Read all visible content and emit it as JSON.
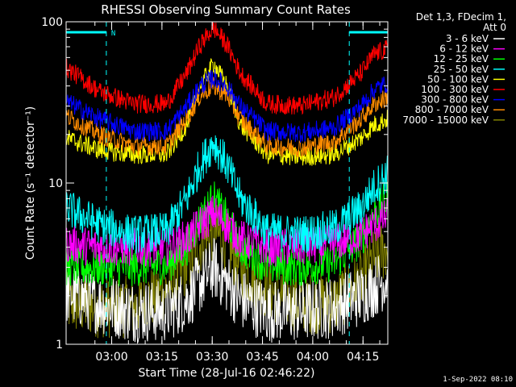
{
  "chart_data": {
    "type": "line",
    "title": "RHESSI Observing Summary Count Rates",
    "xlabel": "Start Time (28-Jul-16 02:46:22)",
    "ylabel": "Count Rate (s⁻¹ detector⁻¹)",
    "x_ticks": [
      "03:00",
      "03:15",
      "03:30",
      "03:45",
      "04:00",
      "04:15"
    ],
    "x_tick_minutes": [
      13.6,
      28.6,
      43.6,
      58.6,
      73.6,
      88.6
    ],
    "xlim_minutes": [
      0,
      96
    ],
    "y_ticks": [
      "1",
      "10",
      "100"
    ],
    "ylim": [
      1,
      100
    ],
    "y_scale": "log",
    "legend_header": [
      "Det 1,3, FDecim 1,",
      "Att 0"
    ],
    "legend_placement": "right",
    "night_marker_label": "N",
    "night_intervals_minutes": [
      [
        0,
        12
      ],
      [
        84.5,
        96
      ]
    ],
    "footer_date": "1-Sep-2022 08:10",
    "series": [
      {
        "name": "3 - 6 keV",
        "color": "#ffffff",
        "x": [
          0,
          10,
          20,
          30,
          36,
          40,
          44,
          48,
          52,
          60,
          70,
          80,
          88,
          92,
          96
        ],
        "y": [
          2.1,
          1.8,
          1.6,
          1.6,
          1.9,
          2.4,
          3.0,
          2.4,
          1.9,
          1.6,
          1.6,
          1.7,
          2.0,
          2.3,
          2.6
        ]
      },
      {
        "name": "6 - 12 keV",
        "color": "#ff00ff",
        "x": [
          0,
          10,
          20,
          30,
          36,
          40,
          44,
          48,
          52,
          60,
          70,
          80,
          88,
          92,
          96
        ],
        "y": [
          4.2,
          4.0,
          4.0,
          4.0,
          4.5,
          5.5,
          6.5,
          5.5,
          4.5,
          4.0,
          4.0,
          4.2,
          4.8,
          5.5,
          6.2
        ]
      },
      {
        "name": "12 - 25 keV",
        "color": "#00ff00",
        "x": [
          0,
          10,
          20,
          30,
          36,
          40,
          44,
          48,
          52,
          60,
          70,
          80,
          88,
          92,
          96
        ],
        "y": [
          3.0,
          3.0,
          3.0,
          3.1,
          4.0,
          6.0,
          8.0,
          6.0,
          4.0,
          3.1,
          3.0,
          3.2,
          4.5,
          6.5,
          8.0
        ]
      },
      {
        "name": "25 - 50 keV",
        "color": "#00ffff",
        "x": [
          0,
          10,
          20,
          30,
          36,
          40,
          44,
          48,
          52,
          60,
          70,
          80,
          88,
          92,
          96
        ],
        "y": [
          7.0,
          5.5,
          4.8,
          5.0,
          8.0,
          13.0,
          18.0,
          13.0,
          8.0,
          5.0,
          4.8,
          5.2,
          7.0,
          9.5,
          11.5
        ]
      },
      {
        "name": "50 - 100 keV",
        "color": "#ffff00",
        "x": [
          0,
          10,
          20,
          30,
          36,
          40,
          44,
          48,
          52,
          60,
          70,
          80,
          88,
          92,
          96
        ],
        "y": [
          19,
          16,
          15,
          15,
          23,
          40,
          55,
          40,
          23,
          15,
          14.5,
          15,
          19,
          23,
          25
        ]
      },
      {
        "name": "100 - 300 keV",
        "color": "#ff0000",
        "x": [
          0,
          10,
          20,
          30,
          36,
          40,
          44,
          48,
          52,
          60,
          70,
          80,
          88,
          92,
          96
        ],
        "y": [
          52,
          37,
          31,
          31,
          48,
          72,
          92,
          72,
          48,
          31,
          30,
          34,
          48,
          63,
          68
        ]
      },
      {
        "name": "300 - 800 keV",
        "color": "#0000ff",
        "x": [
          0,
          10,
          20,
          30,
          36,
          40,
          44,
          48,
          52,
          60,
          70,
          80,
          88,
          92,
          96
        ],
        "y": [
          32,
          25,
          21,
          21,
          30,
          40,
          45,
          40,
          30,
          21,
          20.5,
          22,
          30,
          38,
          42
        ]
      },
      {
        "name": "800 - 7000 keV",
        "color": "#ff8c00",
        "x": [
          0,
          10,
          20,
          30,
          36,
          40,
          44,
          48,
          52,
          60,
          70,
          80,
          88,
          92,
          96
        ],
        "y": [
          26,
          20,
          17,
          17,
          25,
          35,
          40,
          35,
          25,
          17,
          16.5,
          18,
          25,
          31,
          34
        ]
      },
      {
        "name": "7000 - 15000 keV",
        "color": "#808000",
        "x": [
          0,
          10,
          20,
          30,
          36,
          40,
          44,
          48,
          52,
          60,
          70,
          80,
          88,
          92,
          96
        ],
        "y": [
          1.8,
          1.7,
          1.7,
          2.2,
          3.0,
          4.2,
          5.0,
          4.2,
          3.0,
          2.2,
          1.8,
          1.8,
          2.5,
          3.4,
          4.0
        ]
      }
    ]
  }
}
